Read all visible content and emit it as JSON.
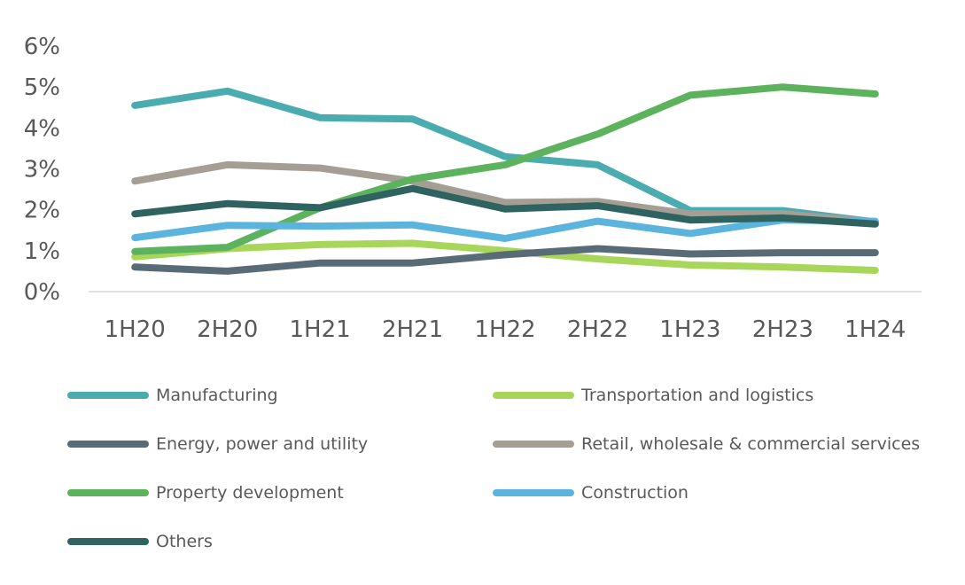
{
  "chart_data": {
    "type": "line",
    "title": "",
    "xlabel": "",
    "ylabel": "",
    "categories": [
      "1H20",
      "2H20",
      "1H21",
      "2H21",
      "1H22",
      "2H22",
      "1H23",
      "2H23",
      "1H24"
    ],
    "ylim": [
      0,
      6
    ],
    "yticks": [
      "0%",
      "1%",
      "2%",
      "3%",
      "4%",
      "5%",
      "6%"
    ],
    "grid": false,
    "legend_position": "bottom",
    "series": [
      {
        "name": "Manufacturing",
        "color": "#4BACB0",
        "values": [
          4.55,
          4.9,
          4.25,
          4.22,
          3.3,
          3.1,
          1.98,
          1.98,
          1.7
        ]
      },
      {
        "name": "Transportation and logistics",
        "color": "#A8D65A",
        "values": [
          0.85,
          1.05,
          1.15,
          1.18,
          1.0,
          0.8,
          0.65,
          0.6,
          0.52
        ]
      },
      {
        "name": "Energy, power and utility",
        "color": "#5A6B78",
        "values": [
          0.6,
          0.5,
          0.7,
          0.7,
          0.9,
          1.05,
          0.92,
          0.95,
          0.95
        ]
      },
      {
        "name": "Retail, wholesale & commercial services",
        "color": "#A59E95",
        "values": [
          2.7,
          3.1,
          3.02,
          2.7,
          2.18,
          2.2,
          1.9,
          1.9,
          1.7
        ]
      },
      {
        "name": "Property development",
        "color": "#5DB35D",
        "values": [
          0.98,
          1.08,
          2.05,
          2.75,
          3.1,
          3.85,
          4.8,
          5.0,
          4.83
        ]
      },
      {
        "name": "Construction",
        "color": "#5BB4DE",
        "values": [
          1.32,
          1.62,
          1.6,
          1.63,
          1.3,
          1.72,
          1.42,
          1.75,
          1.72
        ]
      },
      {
        "name": "Others",
        "color": "#2F6360",
        "values": [
          1.9,
          2.15,
          2.05,
          2.52,
          2.02,
          2.1,
          1.75,
          1.8,
          1.65
        ]
      }
    ]
  }
}
